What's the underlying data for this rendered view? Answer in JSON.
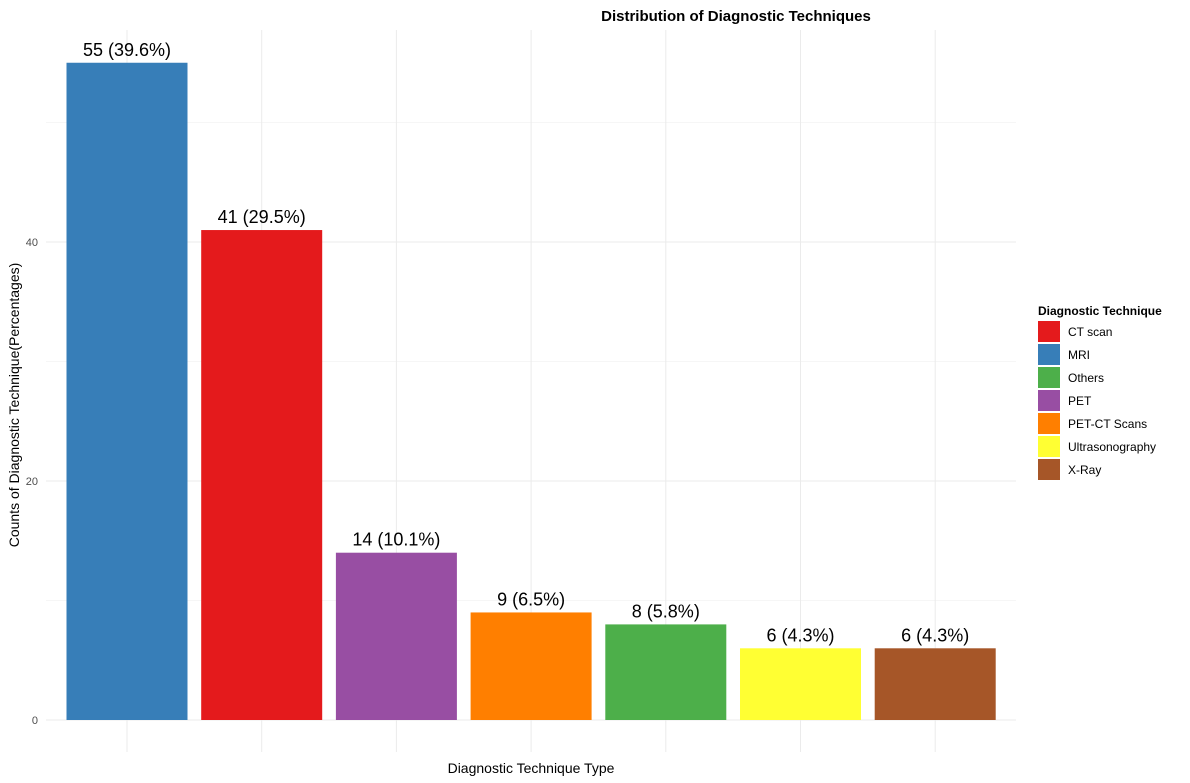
{
  "chart_data": {
    "type": "bar",
    "title": "Distribution of Diagnostic Techniques",
    "xlabel": "Diagnostic Technique Type",
    "ylabel": "Counts of Diagnostic Technique(Percentages)",
    "ylim": [
      0,
      57
    ],
    "yticks": [
      0,
      20,
      40
    ],
    "grid": true,
    "x_tick_labels_shown": false,
    "bars": [
      {
        "category": "MRI",
        "value": 55,
        "label": "55 (39.6%)",
        "color": "#377EB8"
      },
      {
        "category": "CT scan",
        "value": 41,
        "label": "41 (29.5%)",
        "color": "#E41A1C"
      },
      {
        "category": "PET",
        "value": 14,
        "label": "14 (10.1%)",
        "color": "#984EA3"
      },
      {
        "category": "PET-CT Scans",
        "value": 9,
        "label": "9 (6.5%)",
        "color": "#FF7F00"
      },
      {
        "category": "Others",
        "value": 8,
        "label": "8 (5.8%)",
        "color": "#4DAF4A"
      },
      {
        "category": "Ultrasonography",
        "value": 6,
        "label": "6 (4.3%)",
        "color": "#FFFF33"
      },
      {
        "category": "X-Ray",
        "value": 6,
        "label": "6 (4.3%)",
        "color": "#A65628"
      }
    ],
    "legend": {
      "title": "Diagnostic Technique",
      "position": "right",
      "items": [
        {
          "label": "CT scan",
          "color": "#E41A1C"
        },
        {
          "label": "MRI",
          "color": "#377EB8"
        },
        {
          "label": "Others",
          "color": "#4DAF4A"
        },
        {
          "label": "PET",
          "color": "#984EA3"
        },
        {
          "label": "PET-CT Scans",
          "color": "#FF7F00"
        },
        {
          "label": "Ultrasonography",
          "color": "#FFFF33"
        },
        {
          "label": "X-Ray",
          "color": "#A65628"
        }
      ]
    }
  }
}
